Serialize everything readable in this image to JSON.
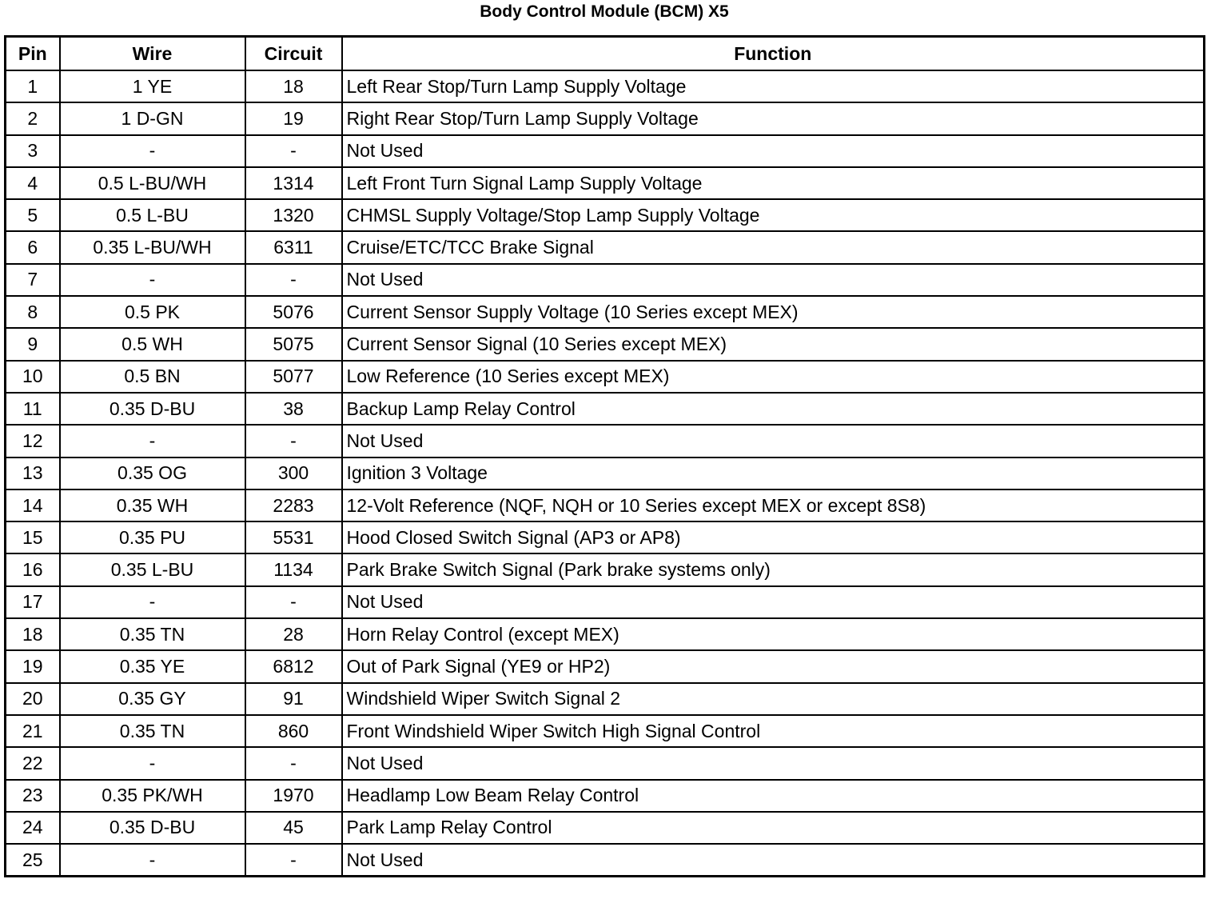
{
  "title": "Body Control Module (BCM) X5",
  "columns": [
    "Pin",
    "Wire",
    "Circuit",
    "Function"
  ],
  "rows": [
    [
      "1",
      "1 YE",
      "18",
      "Left Rear Stop/Turn Lamp Supply Voltage"
    ],
    [
      "2",
      "1 D-GN",
      "19",
      "Right Rear Stop/Turn Lamp Supply Voltage"
    ],
    [
      "3",
      "-",
      "-",
      "Not Used"
    ],
    [
      "4",
      "0.5 L-BU/WH",
      "1314",
      "Left Front Turn Signal Lamp Supply Voltage"
    ],
    [
      "5",
      "0.5 L-BU",
      "1320",
      "CHMSL Supply Voltage/Stop Lamp Supply Voltage"
    ],
    [
      "6",
      "0.35 L-BU/WH",
      "6311",
      "Cruise/ETC/TCC Brake Signal"
    ],
    [
      "7",
      "-",
      "-",
      "Not Used"
    ],
    [
      "8",
      "0.5 PK",
      "5076",
      "Current Sensor Supply Voltage (10 Series except MEX)"
    ],
    [
      "9",
      "0.5 WH",
      "5075",
      "Current Sensor Signal (10 Series except MEX)"
    ],
    [
      "10",
      "0.5 BN",
      "5077",
      "Low Reference (10 Series except MEX)"
    ],
    [
      "11",
      "0.35 D-BU",
      "38",
      "Backup Lamp Relay Control"
    ],
    [
      "12",
      "-",
      "-",
      "Not Used"
    ],
    [
      "13",
      "0.35 OG",
      "300",
      "Ignition 3 Voltage"
    ],
    [
      "14",
      "0.35 WH",
      "2283",
      "12-Volt Reference (NQF, NQH or 10 Series except MEX or except 8S8)"
    ],
    [
      "15",
      "0.35 PU",
      "5531",
      "Hood Closed Switch Signal (AP3 or AP8)"
    ],
    [
      "16",
      "0.35 L-BU",
      "1134",
      "Park Brake Switch Signal (Park brake systems only)"
    ],
    [
      "17",
      "-",
      "-",
      "Not Used"
    ],
    [
      "18",
      "0.35 TN",
      "28",
      "Horn Relay Control (except MEX)"
    ],
    [
      "19",
      "0.35 YE",
      "6812",
      "Out of Park Signal (YE9 or HP2)"
    ],
    [
      "20",
      "0.35 GY",
      "91",
      "Windshield Wiper Switch Signal 2"
    ],
    [
      "21",
      "0.35 TN",
      "860",
      "Front Windshield Wiper Switch High Signal Control"
    ],
    [
      "22",
      "-",
      "-",
      "Not Used"
    ],
    [
      "23",
      "0.35 PK/WH",
      "1970",
      "Headlamp Low Beam Relay Control"
    ],
    [
      "24",
      "0.35 D-BU",
      "45",
      "Park Lamp Relay Control"
    ],
    [
      "25",
      "-",
      "-",
      "Not Used"
    ]
  ]
}
